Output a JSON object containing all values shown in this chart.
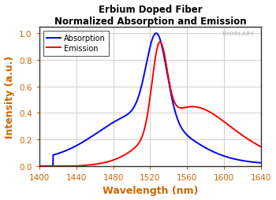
{
  "title_line1": "Erbium Doped Fiber",
  "title_line2": "Normalized Absorption and Emission",
  "xlabel": "Wavelength (nm)",
  "ylabel": "Intensity (a.u.)",
  "xlim": [
    1400,
    1640
  ],
  "ylim": [
    0.0,
    1.05
  ],
  "xticks": [
    1400,
    1440,
    1480,
    1520,
    1560,
    1600,
    1640
  ],
  "yticks": [
    0.0,
    0.2,
    0.4,
    0.6,
    0.8,
    1.0
  ],
  "absorption_color": "#0000FF",
  "emission_color": "#FF0000",
  "background_color": "#FFFFFF",
  "plot_bg_color": "#FFFFFF",
  "grid_color": "#C8C8C8",
  "title_color": "#000000",
  "axis_label_color": "#CC6600",
  "tick_label_color": "#CC6600",
  "watermark": "THORLABS",
  "legend_labels": [
    "Absorption",
    "Emission"
  ]
}
